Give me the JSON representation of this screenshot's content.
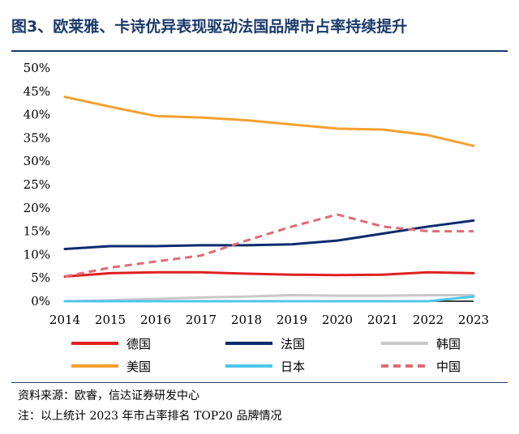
{
  "title": "图3、欧莱雅、卡诗优异表现驱动法国品牌市占率持续提升",
  "source": "资料来源：欧睿，信达证券研发中心",
  "footnote": "注：以上统计 2023 年市占率排名 TOP20 品牌情况",
  "chart_data": {
    "type": "line",
    "title": "",
    "xlabel": "",
    "ylabel": "",
    "x": [
      "2014",
      "2015",
      "2016",
      "2017",
      "2018",
      "2019",
      "2020",
      "2021",
      "2022",
      "2023"
    ],
    "ylim": [
      0,
      50
    ],
    "yticks": [
      "0%",
      "5%",
      "10%",
      "15%",
      "20%",
      "25%",
      "30%",
      "35%",
      "40%",
      "45%",
      "50%"
    ],
    "grid": false,
    "legend_position": "bottom",
    "series": [
      {
        "name": "德国",
        "color": "#e02020",
        "dashed": false,
        "values": [
          5.3,
          6.0,
          6.2,
          6.2,
          5.9,
          5.7,
          5.6,
          5.7,
          6.2,
          6.0
        ]
      },
      {
        "name": "法国",
        "color": "#0b2a6f",
        "dashed": false,
        "values": [
          11.2,
          11.8,
          11.8,
          12.0,
          12.0,
          12.2,
          13.0,
          14.5,
          16.0,
          17.3
        ]
      },
      {
        "name": "韩国",
        "color": "#c8c8c8",
        "dashed": false,
        "values": [
          0.0,
          0.2,
          0.5,
          0.8,
          1.0,
          1.3,
          1.2,
          1.2,
          1.3,
          1.3
        ]
      },
      {
        "name": "美国",
        "color": "#f5a030",
        "dashed": false,
        "values": [
          43.8,
          41.7,
          39.7,
          39.4,
          38.8,
          37.9,
          37.0,
          36.8,
          35.6,
          33.3
        ]
      },
      {
        "name": "日本",
        "color": "#4fc6ec",
        "dashed": false,
        "values": [
          0.0,
          0.0,
          0.0,
          0.0,
          0.0,
          0.0,
          0.0,
          0.0,
          0.0,
          1.0
        ]
      },
      {
        "name": "中国",
        "color": "#e06a74",
        "dashed": true,
        "values": [
          5.3,
          7.2,
          8.5,
          9.8,
          13.0,
          16.0,
          18.6,
          16.0,
          15.0,
          15.0
        ]
      }
    ]
  }
}
